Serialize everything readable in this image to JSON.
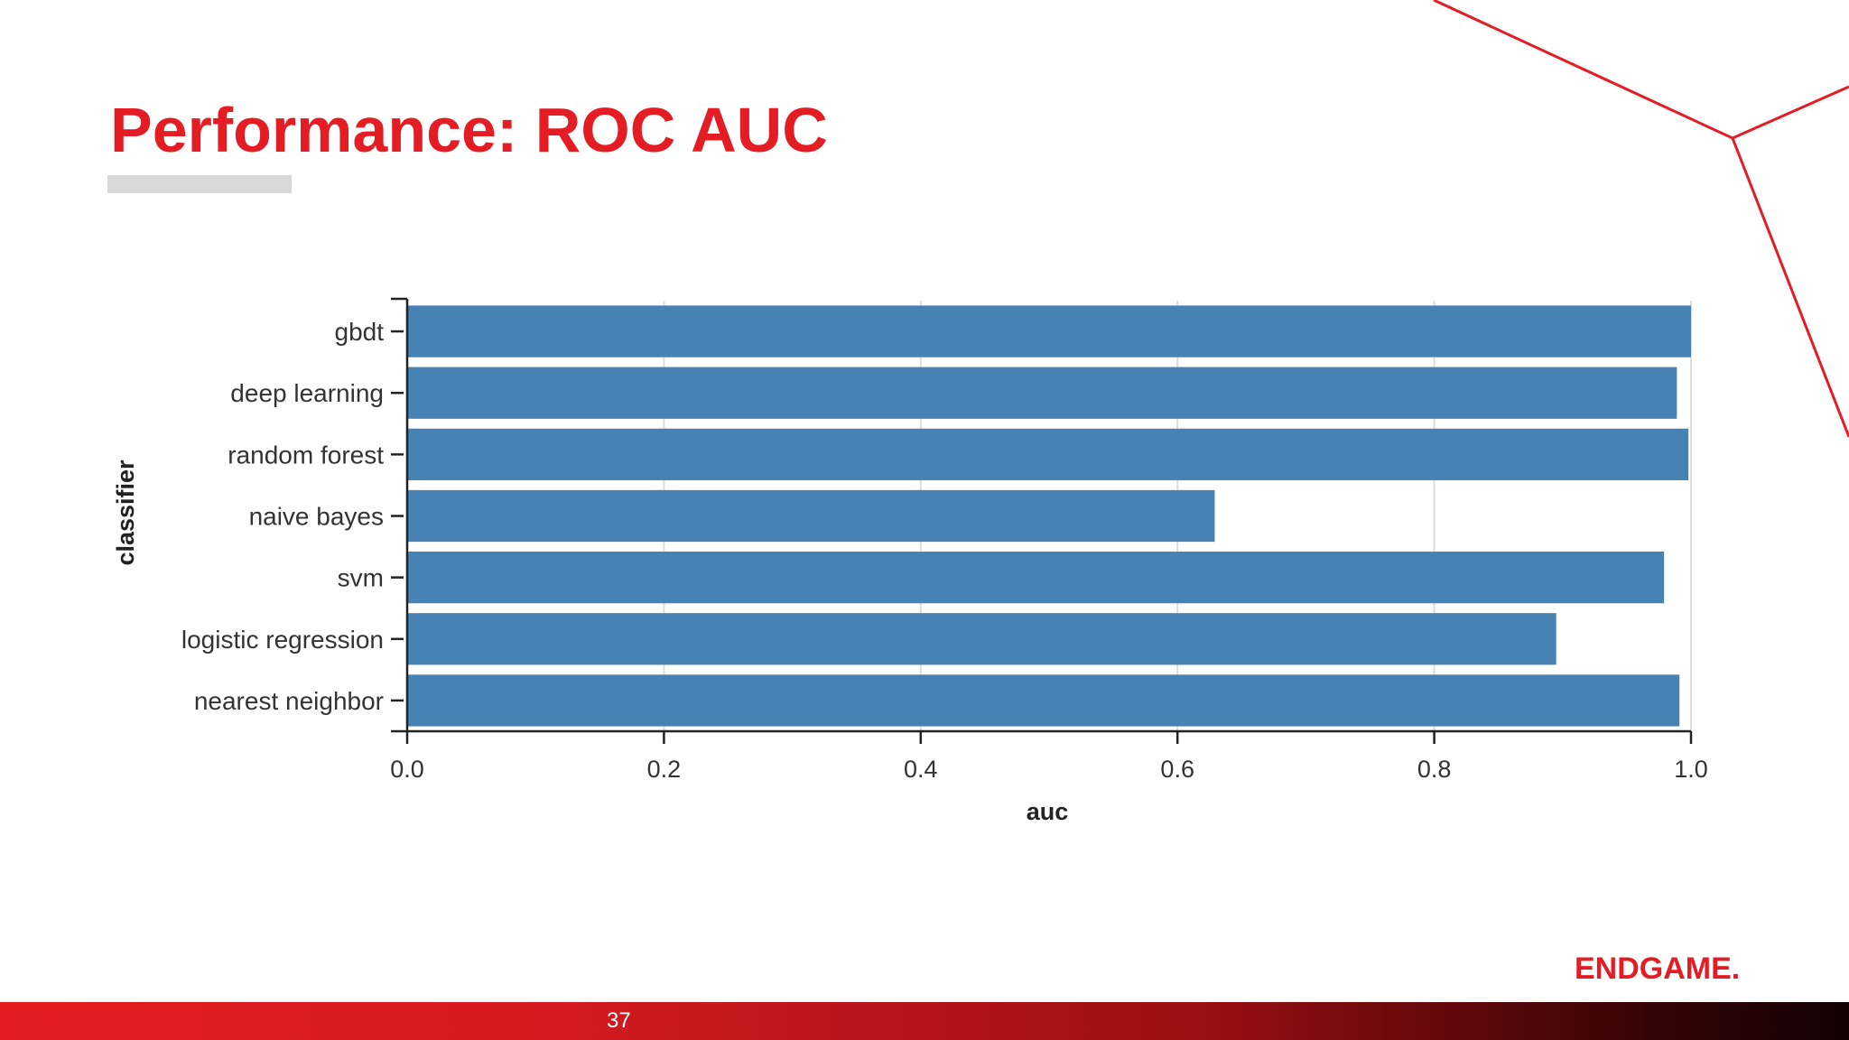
{
  "slide": {
    "title": "Performance: ROC AUC",
    "brand": "ENDGAME.",
    "page_number": "37"
  },
  "colors": {
    "accent": "#e31d23",
    "bar": "#4682b4",
    "grid": "#dddddd",
    "text": "#222222"
  },
  "chart_data": {
    "type": "bar",
    "orientation": "horizontal",
    "categories": [
      "gbdt",
      "deep learning",
      "random forest",
      "naive bayes",
      "svm",
      "logistic regression",
      "nearest neighbor"
    ],
    "values": [
      1.0,
      0.989,
      0.998,
      0.629,
      0.979,
      0.895,
      0.991
    ],
    "xlabel": "auc",
    "ylabel": "classifier",
    "xlim": [
      0.0,
      1.0
    ],
    "xticks": [
      "0.0",
      "0.2",
      "0.4",
      "0.6",
      "0.8",
      "1.0"
    ],
    "grid": true
  }
}
